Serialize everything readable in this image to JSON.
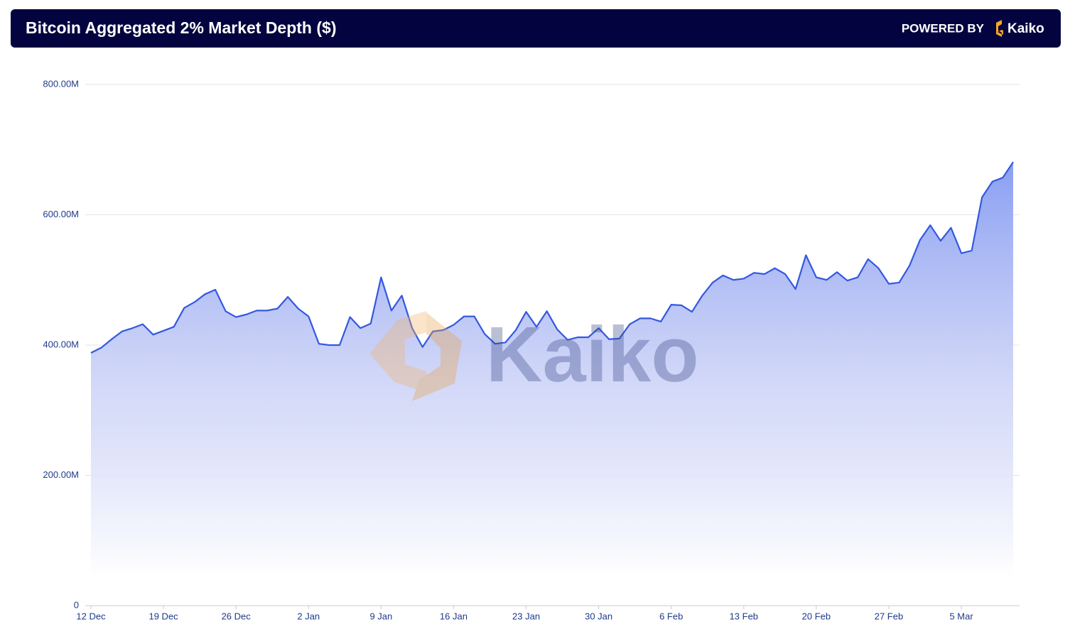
{
  "chart_data": {
    "type": "area",
    "title": "Bitcoin Aggregated 2% Market Depth ($)",
    "powered_by": "POWERED BY",
    "brand": "Kaiko",
    "categories": [
      "12 Dec",
      null,
      null,
      null,
      null,
      null,
      null,
      "19 Dec",
      null,
      null,
      null,
      null,
      null,
      null,
      "26 Dec",
      null,
      null,
      null,
      null,
      null,
      null,
      "2 Jan",
      null,
      null,
      null,
      null,
      null,
      null,
      "9 Jan",
      null,
      null,
      null,
      null,
      null,
      null,
      "16 Jan",
      null,
      null,
      null,
      null,
      null,
      null,
      "23 Jan",
      null,
      null,
      null,
      null,
      null,
      null,
      "30 Jan",
      null,
      null,
      null,
      null,
      null,
      null,
      "6 Feb",
      null,
      null,
      null,
      null,
      null,
      null,
      "13 Feb",
      null,
      null,
      null,
      null,
      null,
      null,
      "20 Feb",
      null,
      null,
      null,
      null,
      null,
      null,
      "27 Feb",
      null,
      null,
      null,
      null,
      null,
      null,
      "5 Mar",
      null,
      null,
      null,
      null,
      null
    ],
    "values": [
      388,
      396,
      409,
      421,
      426,
      432,
      416,
      422,
      428,
      457,
      466,
      478,
      485,
      452,
      443,
      447,
      453,
      453,
      456,
      474,
      456,
      444,
      402,
      400,
      400,
      443,
      426,
      433,
      504,
      453,
      476,
      426,
      397,
      421,
      423,
      431,
      444,
      444,
      417,
      402,
      404,
      423,
      451,
      428,
      452,
      424,
      408,
      412,
      412,
      426,
      409,
      410,
      432,
      441,
      441,
      436,
      462,
      461,
      451,
      476,
      496,
      507,
      500,
      502,
      511,
      509,
      518,
      509,
      486,
      538,
      504,
      500,
      512,
      499,
      504,
      532,
      518,
      494,
      496,
      522,
      561,
      584,
      560,
      580,
      541,
      545,
      627,
      651,
      657,
      681
    ],
    "color": "#3358e0",
    "fill_color": "#8a9ff2",
    "ylim": [
      0,
      800
    ],
    "yticks": [
      0,
      {
        "value": 200,
        "label": "200.00M"
      },
      {
        "value": 400,
        "label": "400.00M"
      },
      {
        "value": 600,
        "label": "600.00M"
      },
      {
        "value": 800,
        "label": "800.00M"
      }
    ],
    "grid": true
  }
}
